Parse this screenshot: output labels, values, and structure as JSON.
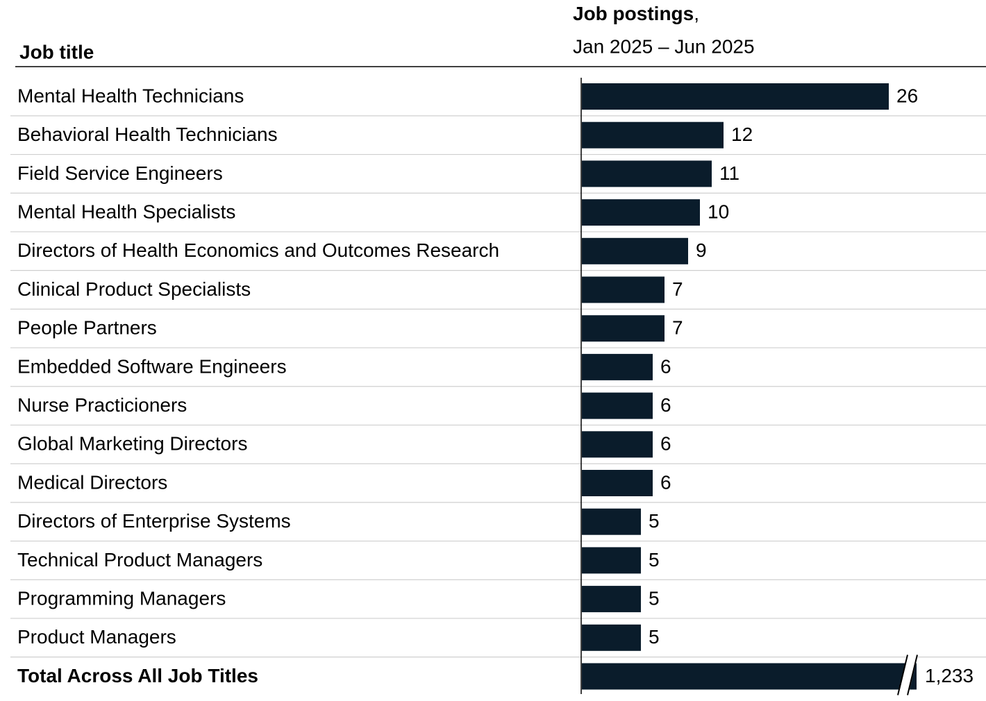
{
  "chart_data": {
    "type": "bar",
    "orientation": "horizontal",
    "category_header": "Job title",
    "x_label": "Job postings",
    "x_label_suffix": ",",
    "x_sublabel": "Jan 2025 – Jun 2025",
    "categories": [
      "Mental Health Technicians",
      "Behavioral Health Technicians",
      "Field Service Engineers",
      "Mental Health Specialists",
      "Directors of Health Economics and Outcomes Research",
      "Clinical Product Specialists",
      "People Partners",
      "Embedded Software Engineers",
      "Nurse Practicioners",
      "Global Marketing Directors",
      "Medical Directors",
      "Directors of Enterprise Systems",
      "Technical Product Managers",
      "Programming Managers",
      "Product Managers"
    ],
    "values": [
      26,
      12,
      11,
      10,
      9,
      7,
      7,
      6,
      6,
      6,
      6,
      5,
      5,
      5,
      5
    ],
    "color": "#0a1c2b",
    "xlim": [
      0,
      30
    ],
    "total": {
      "label": "Total Across All Job Titles",
      "value": 1233,
      "value_label": "1,233",
      "axis_break": true
    }
  }
}
